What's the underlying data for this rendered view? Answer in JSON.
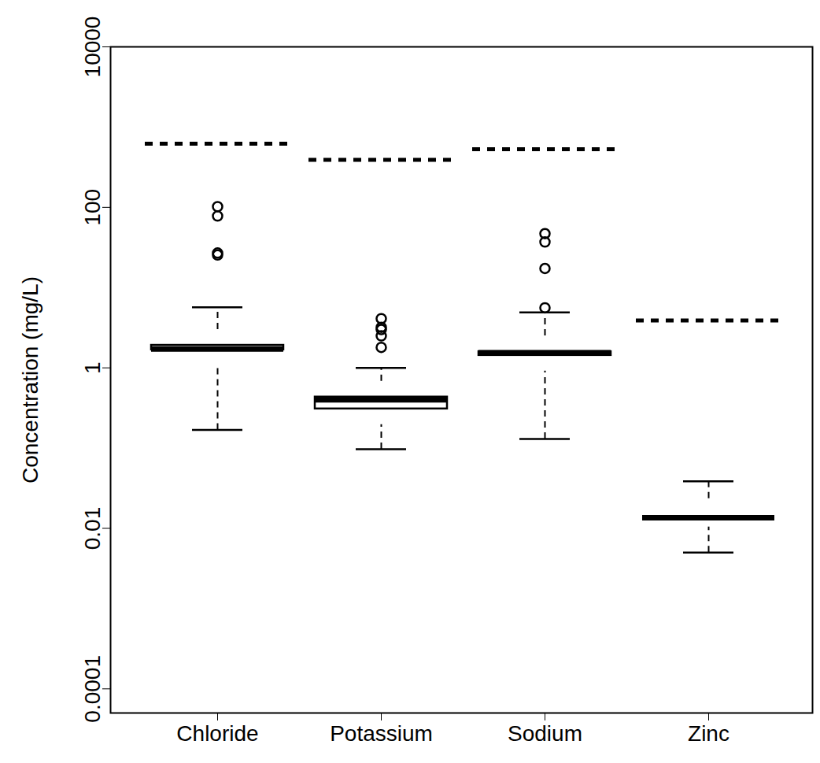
{
  "chart_data": {
    "type": "box",
    "ylabel": "Concentration (mg/L)",
    "categories": [
      "Chloride",
      "Potassium",
      "Sodium",
      "Zinc"
    ],
    "whisker_low": [
      0.168,
      0.097,
      0.13,
      0.005
    ],
    "q1": [
      1.07,
      0.196,
      0.91,
      0.0104
    ],
    "median": [
      1.72,
      0.4,
      1.54,
      0.0136
    ],
    "q3": [
      3.0,
      0.68,
      2.5,
      0.0234
    ],
    "whisker_high": [
      5.7,
      1.0,
      4.9,
      0.0385
    ],
    "outliers": [
      [
        102,
        78,
        27,
        25.5
      ],
      [
        4.1,
        3.2,
        3.0,
        2.5,
        1.8
      ],
      [
        47,
        37,
        17.3,
        5.6
      ],
      []
    ],
    "reference_lines": [
      620,
      390,
      530,
      3.9
    ],
    "line_style": "dashed",
    "color": "#000000",
    "log": "y",
    "ylim": [
      5e-05,
      10000
    ],
    "yticks": [
      0.0001,
      0.01,
      1,
      100,
      10000
    ]
  }
}
